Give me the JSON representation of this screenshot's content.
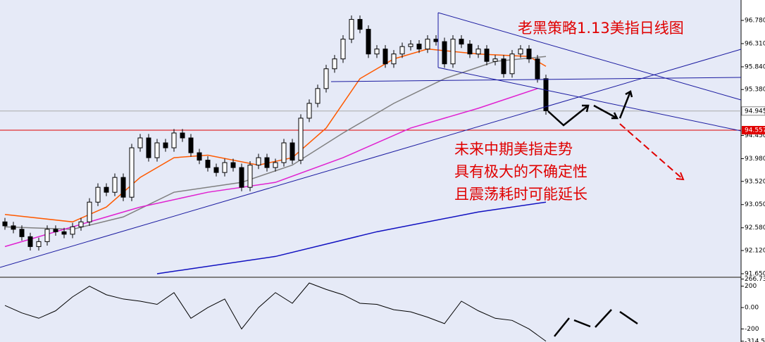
{
  "chart_data": {
    "type": "candlestick",
    "title": "老黑策略1.13美指日线图",
    "annotations": [
      "未来中期美指走势",
      "具有极大的不确定性",
      "且震荡耗时可能延长"
    ],
    "ylim": [
      91.607,
      97.193
    ],
    "yticks": [
      {
        "value": 96.78,
        "label": "96.780"
      },
      {
        "value": 96.31,
        "label": "96.310"
      },
      {
        "value": 95.84,
        "label": "95.840"
      },
      {
        "value": 95.38,
        "label": "95.380"
      },
      {
        "value": 94.45,
        "label": "94.450"
      },
      {
        "value": 93.98,
        "label": "93.980"
      },
      {
        "value": 93.52,
        "label": "93.520"
      },
      {
        "value": 93.05,
        "label": "93.050"
      },
      {
        "value": 92.58,
        "label": "92.580"
      },
      {
        "value": 92.12,
        "label": "92.120"
      },
      {
        "value": 91.65,
        "label": "91.650"
      }
    ],
    "current_price": 94.945,
    "level_line": 94.557,
    "open": [
      92.7,
      92.62,
      92.55,
      92.4,
      92.2,
      92.3,
      92.55,
      92.5,
      92.45,
      92.6,
      92.7,
      93.1,
      93.4,
      93.3,
      93.6,
      93.2,
      94.2,
      94.4,
      94.0,
      94.3,
      94.2,
      94.5,
      94.4,
      94.1,
      93.95,
      93.8,
      93.7,
      93.9,
      93.8,
      93.4,
      93.85,
      94.0,
      93.8,
      93.9,
      94.3,
      93.95,
      94.8,
      95.1,
      95.4,
      95.8,
      96.0,
      96.4,
      96.8,
      96.6,
      96.1,
      96.2,
      95.9,
      96.1,
      96.25,
      96.3,
      96.2,
      96.4,
      96.35,
      95.9,
      96.4,
      96.3,
      96.1,
      96.2,
      95.95,
      96.0,
      95.7,
      96.1,
      96.2,
      96.0,
      95.6
    ],
    "high": [
      92.78,
      92.7,
      92.63,
      92.48,
      92.38,
      92.63,
      92.63,
      92.58,
      92.68,
      92.78,
      93.18,
      93.48,
      93.48,
      93.68,
      93.68,
      94.28,
      94.48,
      94.48,
      94.38,
      94.38,
      94.58,
      94.58,
      94.48,
      94.18,
      94.03,
      93.88,
      93.98,
      93.98,
      93.88,
      93.93,
      94.08,
      94.08,
      93.98,
      94.38,
      94.38,
      94.88,
      95.18,
      95.48,
      95.88,
      96.08,
      96.48,
      96.88,
      96.88,
      96.68,
      96.28,
      96.28,
      96.18,
      96.33,
      96.38,
      96.38,
      96.48,
      96.48,
      96.43,
      96.48,
      96.48,
      96.38,
      96.28,
      96.28,
      96.08,
      96.08,
      96.18,
      96.28,
      96.28,
      96.08,
      95.68
    ],
    "low": [
      92.54,
      92.47,
      92.32,
      92.12,
      92.12,
      92.22,
      92.42,
      92.37,
      92.37,
      92.52,
      92.62,
      93.02,
      93.22,
      93.22,
      93.12,
      93.12,
      94.12,
      93.92,
      93.92,
      94.12,
      94.12,
      94.32,
      94.02,
      93.87,
      93.72,
      93.62,
      93.62,
      93.72,
      93.32,
      93.32,
      93.77,
      93.72,
      93.72,
      93.82,
      93.87,
      93.87,
      94.72,
      95.02,
      95.32,
      95.72,
      95.92,
      96.32,
      96.52,
      96.02,
      96.02,
      95.82,
      95.82,
      96.02,
      96.17,
      96.12,
      96.12,
      96.27,
      95.82,
      95.82,
      96.22,
      96.02,
      96.02,
      95.87,
      95.87,
      95.62,
      95.62,
      96.02,
      95.92,
      95.52,
      94.87
    ],
    "close": [
      92.62,
      92.55,
      92.4,
      92.2,
      92.3,
      92.55,
      92.5,
      92.45,
      92.6,
      92.7,
      93.1,
      93.4,
      93.3,
      93.6,
      93.2,
      94.2,
      94.4,
      94.0,
      94.3,
      94.2,
      94.5,
      94.4,
      94.1,
      93.95,
      93.8,
      93.7,
      93.9,
      93.8,
      93.4,
      93.85,
      94.0,
      93.8,
      93.9,
      94.3,
      93.95,
      94.8,
      95.1,
      95.4,
      95.8,
      96.0,
      96.4,
      96.8,
      96.6,
      96.1,
      96.2,
      95.9,
      96.1,
      96.25,
      96.3,
      96.2,
      96.4,
      96.35,
      95.9,
      96.4,
      96.3,
      96.1,
      96.2,
      95.95,
      96.0,
      95.7,
      96.1,
      96.2,
      96.0,
      95.6,
      94.95
    ],
    "indicators": [
      {
        "color": "#ff5a00",
        "x": [
          0,
          8,
          12,
          16,
          20,
          24,
          30,
          34,
          38,
          42,
          46,
          50,
          56,
          62,
          64
        ],
        "values": [
          92.85,
          92.7,
          93.0,
          93.6,
          94.0,
          94.05,
          93.85,
          94.0,
          94.6,
          95.6,
          96.0,
          96.2,
          96.1,
          96.05,
          95.85
        ]
      },
      {
        "color": "#808080",
        "x": [
          0,
          8,
          14,
          20,
          28,
          34,
          40,
          46,
          52,
          58,
          64
        ],
        "values": [
          92.6,
          92.55,
          92.8,
          93.3,
          93.5,
          93.85,
          94.5,
          95.1,
          95.6,
          95.95,
          96.05
        ]
      },
      {
        "color": "#e020d0",
        "x": [
          0,
          8,
          16,
          24,
          32,
          40,
          48,
          56,
          63
        ],
        "values": [
          92.2,
          92.6,
          93.0,
          93.3,
          93.5,
          94.0,
          94.6,
          95.0,
          95.4
        ]
      },
      {
        "color": "#1010c0",
        "x": [
          18,
          32,
          44,
          56,
          64
        ],
        "values": [
          91.65,
          92.0,
          92.5,
          92.9,
          93.1
        ]
      }
    ],
    "oscillator": {
      "color": "#000000",
      "ylim": [
        -322,
        277
      ],
      "yticks": [
        {
          "value": 266.73,
          "label": "266.730"
        },
        200,
        {
          "value": 0,
          "label": "0.00"
        },
        -200,
        {
          "value": -314.53,
          "label": "-314.53"
        }
      ],
      "x": [
        0,
        2,
        4,
        6,
        8,
        10,
        12,
        14,
        16,
        18,
        20,
        22,
        24,
        26,
        28,
        30,
        32,
        34,
        36,
        38,
        40,
        42,
        44,
        46,
        48,
        50,
        52,
        54,
        56,
        58,
        60,
        62,
        64
      ],
      "values": [
        20,
        -50,
        -100,
        -30,
        100,
        200,
        120,
        80,
        60,
        30,
        140,
        -100,
        0,
        80,
        -200,
        0,
        140,
        40,
        230,
        170,
        120,
        40,
        30,
        -20,
        -40,
        -90,
        -150,
        60,
        -30,
        -100,
        -120,
        -200,
        -314.53
      ]
    }
  }
}
